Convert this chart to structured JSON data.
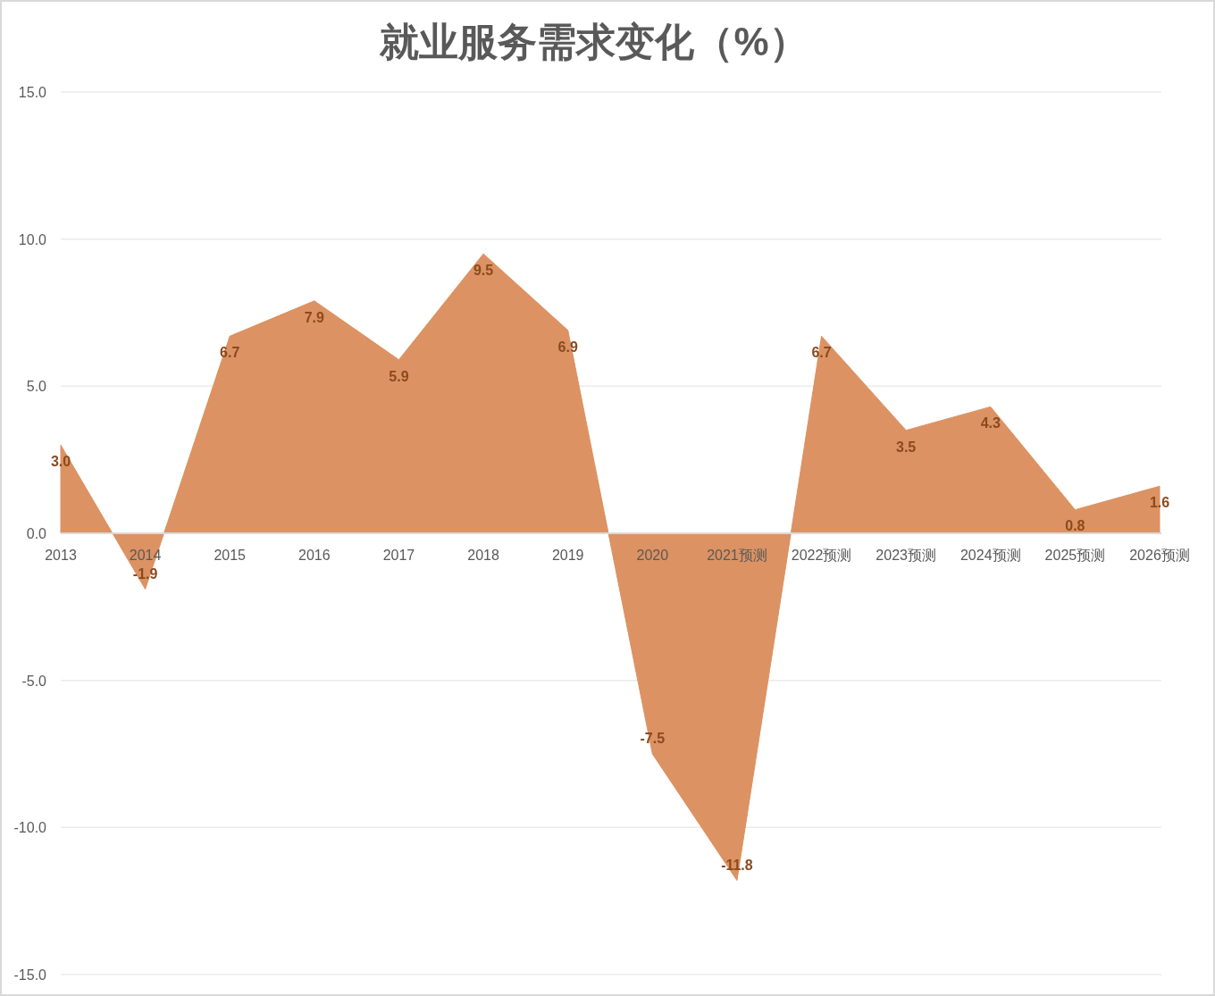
{
  "chart_data": {
    "type": "area",
    "title": "就业服务需求变化（%）",
    "categories": [
      "2013",
      "2014",
      "2015",
      "2016",
      "2017",
      "2018",
      "2019",
      "2020",
      "2021预测",
      "2022预测",
      "2023预测",
      "2024预测",
      "2025预测",
      "2026预测"
    ],
    "values": [
      3.0,
      -1.9,
      6.7,
      7.9,
      5.9,
      9.5,
      6.9,
      -7.5,
      -11.8,
      6.7,
      3.5,
      4.3,
      0.8,
      1.6
    ],
    "value_labels": [
      "3.0",
      "-1.9",
      "6.7",
      "7.9",
      "5.9",
      "9.5",
      "6.9",
      "-7.5",
      "-11.8",
      "6.7",
      "3.5",
      "4.3",
      "0.8",
      "1.6"
    ],
    "color": "#dc9262",
    "ylim": [
      -15,
      15
    ],
    "yticks": [
      {
        "value": -15,
        "label": "-15.0"
      },
      {
        "value": -10,
        "label": "-10.0"
      },
      {
        "value": -5,
        "label": "-5.0"
      },
      {
        "value": 0,
        "label": "0.0"
      },
      {
        "value": 5,
        "label": "5.0"
      },
      {
        "value": 10,
        "label": "10.0"
      },
      {
        "value": 15,
        "label": "15.0"
      }
    ],
    "grid": "y"
  }
}
